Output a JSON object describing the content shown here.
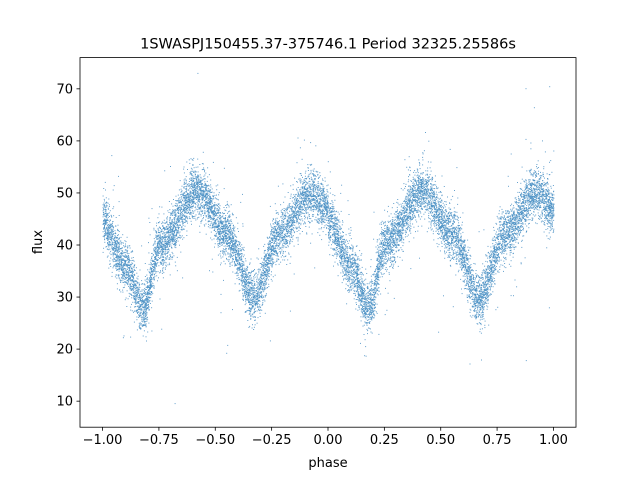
{
  "chart_data": {
    "type": "scatter",
    "title": "1SWASPJ150455.37-375746.1 Period 32325.25586s",
    "xlabel": "phase",
    "ylabel": "flux",
    "xlim": [
      -1.1,
      1.1
    ],
    "ylim": [
      5,
      76
    ],
    "xticks": [
      -1.0,
      -0.75,
      -0.5,
      -0.25,
      0.0,
      0.25,
      0.5,
      0.75,
      1.0
    ],
    "xtick_labels": [
      "−1.00",
      "−0.75",
      "−0.50",
      "−0.25",
      "0.00",
      "0.25",
      "0.50",
      "0.75",
      "1.00"
    ],
    "yticks": [
      10,
      20,
      30,
      40,
      50,
      60,
      70
    ],
    "ytick_labels": [
      "10",
      "20",
      "30",
      "40",
      "50",
      "60",
      "70"
    ],
    "grid": false,
    "point_color": "#4a90c4",
    "phase_range": [
      -1.0,
      1.0
    ],
    "folded_period_phase": 1.0,
    "light_curve_profile": {
      "phase": [
        0.0,
        0.1,
        0.18,
        0.25,
        0.42,
        0.55,
        0.67,
        0.78,
        0.92,
        1.0
      ],
      "flux": [
        44.5,
        36.0,
        28.0,
        40.0,
        50.5,
        42.0,
        30.0,
        42.0,
        50.0,
        47.0
      ]
    },
    "scatter_sigma": 2.4,
    "n_points": 14000
  }
}
